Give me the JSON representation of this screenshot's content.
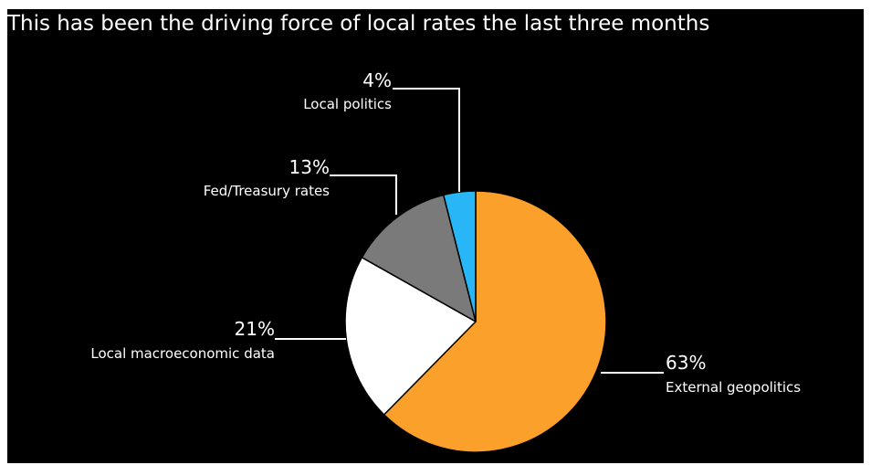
{
  "chart_data": {
    "type": "pie",
    "title": "This has been the driving force of local rates the last three months",
    "slices": [
      {
        "label": "External geopolitics",
        "value": 63,
        "value_label": "63%",
        "color": "#FBA12B"
      },
      {
        "label": "Local macroeconomic data",
        "value": 21,
        "value_label": "21%",
        "color": "#FFFFFF"
      },
      {
        "label": "Fed/Treasury rates",
        "value": 13,
        "value_label": "13%",
        "color": "#7A7A7A"
      },
      {
        "label": "Local politics",
        "value": 4,
        "value_label": "4%",
        "color": "#29B6F6"
      }
    ],
    "start_angle": "12 o'clock",
    "direction": "clockwise",
    "background": "#000000",
    "legend": "none"
  }
}
